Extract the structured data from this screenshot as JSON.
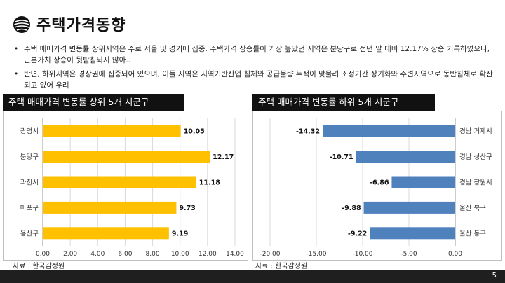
{
  "page": {
    "title": "주택가격동향",
    "bullets": [
      "주택 매매가격 변동률 상위지역은 주로 서울 및 경기에 집중. 주택가격 상승률이 가장 높았던 지역은 분당구로 전년 말 대비 12.17% 상승 기록하였으나, 근본가치 상승이 뒷받침되지 않아..",
      "반면, 하위지역은 경상권에 집중되어 있으며, 이들 지역은 지역기반산업 침체와 공급물량 누적이 맞물려 조정기간 장기화와 주변지역으로 동반침체로 확산되고 있어 우려"
    ],
    "page_number": "5"
  },
  "colors": {
    "bar_top": "#ffc000",
    "bar_bottom": "#4f81bd",
    "header_bg": "#111111"
  },
  "chart_data": [
    {
      "type": "bar",
      "orientation": "horizontal",
      "title": "주택 매매가격 변동률 상위 5개 시군구",
      "categories": [
        "광명시",
        "분당구",
        "과천시",
        "마포구",
        "용산구"
      ],
      "values": [
        10.05,
        12.17,
        11.18,
        9.73,
        9.19
      ],
      "value_labels": [
        "10.05",
        "12.17",
        "11.18",
        "9.73",
        "9.19"
      ],
      "xlim": [
        0,
        14
      ],
      "x_ticks": [
        "0.00",
        "2.00",
        "4.00",
        "6.00",
        "8.00",
        "10.00",
        "12.00",
        "14.00"
      ],
      "x_tick_values": [
        0,
        2,
        4,
        6,
        8,
        10,
        12,
        14
      ],
      "grid": true,
      "source": "자료 : 한국감정원"
    },
    {
      "type": "bar",
      "orientation": "horizontal",
      "title": "주택 매매가격 변동률 하위 5개 시군구",
      "categories": [
        "경남 거제시",
        "경남 성산구",
        "경남 창원시",
        "울산 북구",
        "울산 동구"
      ],
      "values": [
        -14.32,
        -10.71,
        -6.86,
        -9.88,
        -9.22
      ],
      "value_labels": [
        "-14.32",
        "-10.71",
        "-6.86",
        "-9.88",
        "-9.22"
      ],
      "xlim": [
        -20,
        0
      ],
      "x_ticks": [
        "-20.00",
        "-15.00",
        "-10.00",
        "-5.00",
        "0.00"
      ],
      "x_tick_values": [
        -20,
        -15,
        -10,
        -5,
        0
      ],
      "grid": true,
      "source": "자료 : 한국감정원"
    }
  ]
}
